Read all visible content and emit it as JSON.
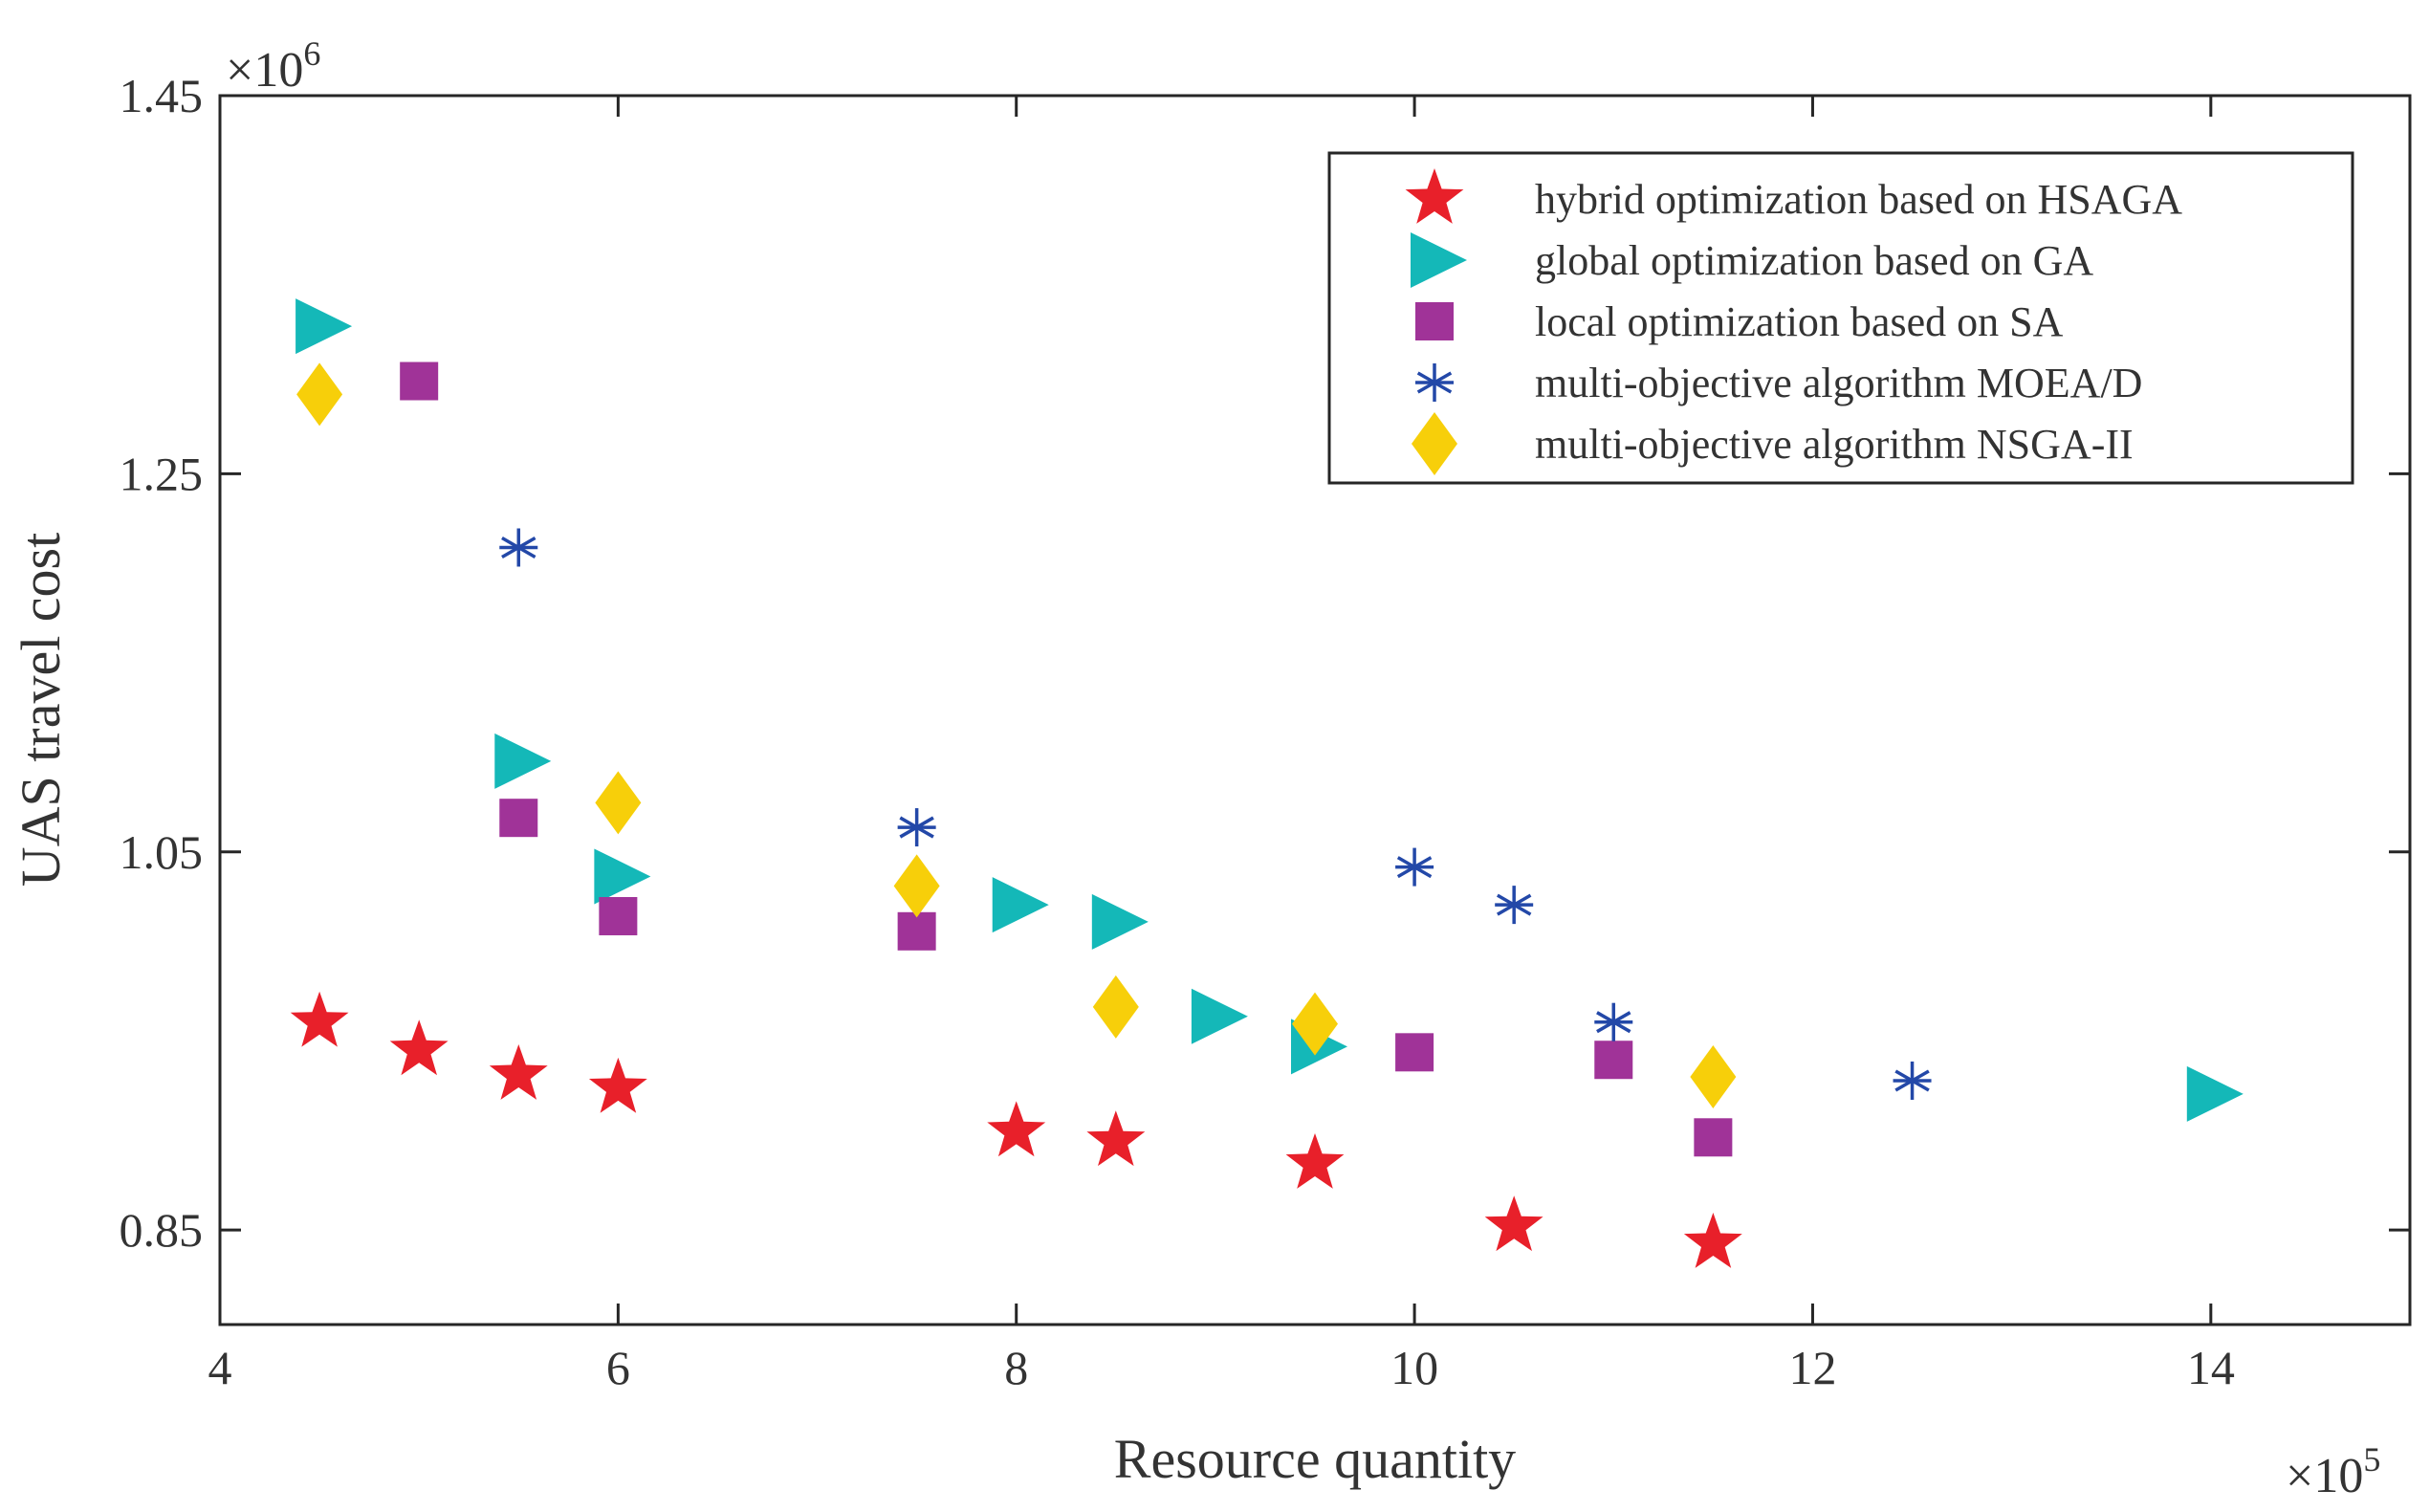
{
  "chart_data": {
    "type": "scatter",
    "title": "",
    "xlabel": "Resource quantity",
    "ylabel": "UAS travel cost",
    "x_exponent": {
      "base": "×10",
      "power": "5"
    },
    "y_exponent": {
      "base": "×10",
      "power": "6"
    },
    "xlim": [
      4,
      15
    ],
    "ylim": [
      0.8,
      1.45
    ],
    "xticks": [
      4,
      6,
      8,
      10,
      12,
      14
    ],
    "xtick_labels": [
      "4",
      "6",
      "8",
      "10",
      "12",
      "14"
    ],
    "yticks": [
      0.85,
      1.05,
      1.25,
      1.45
    ],
    "ytick_labels": [
      "0.85",
      "1.05",
      "1.25",
      "1.45"
    ],
    "grid": false,
    "legend_position": "top-right",
    "series": [
      {
        "name": "hybrid optimization based on HSAGA",
        "marker": "star",
        "color": "#e8202a",
        "x": [
          4.5,
          5.0,
          5.5,
          6.0,
          8.0,
          8.5,
          9.5,
          10.5,
          11.5
        ],
        "y": [
          0.96,
          0.945,
          0.932,
          0.925,
          0.902,
          0.897,
          0.885,
          0.852,
          0.843
        ]
      },
      {
        "name": "global optimization based on GA",
        "marker": "triangle-right",
        "color": "#14b8b8",
        "x": [
          4.5,
          5.5,
          6.0,
          8.0,
          8.5,
          9.0,
          9.5,
          14.0
        ],
        "y": [
          1.328,
          1.098,
          1.037,
          1.022,
          1.013,
          0.963,
          0.947,
          0.922
        ]
      },
      {
        "name": "local optimization based on SA",
        "marker": "square",
        "color": "#a03398",
        "x": [
          5.0,
          5.5,
          6.0,
          7.5,
          10.0,
          11.0,
          11.5
        ],
        "y": [
          1.299,
          1.068,
          1.016,
          1.008,
          0.944,
          0.94,
          0.899
        ]
      },
      {
        "name": "multi-objective algorithm MOEA/D",
        "marker": "asterisk",
        "color": "#2348a8",
        "x": [
          5.5,
          7.5,
          10.0,
          10.5,
          11.0,
          12.5
        ],
        "y": [
          1.211,
          1.063,
          1.042,
          1.022,
          0.96,
          0.929
        ]
      },
      {
        "name": "multi-objective algorithm NSGA-II",
        "marker": "diamond",
        "color": "#f7cf0a",
        "x": [
          4.5,
          6.0,
          7.5,
          8.5,
          9.5,
          11.5
        ],
        "y": [
          1.292,
          1.076,
          1.032,
          0.968,
          0.959,
          0.931
        ]
      }
    ]
  }
}
